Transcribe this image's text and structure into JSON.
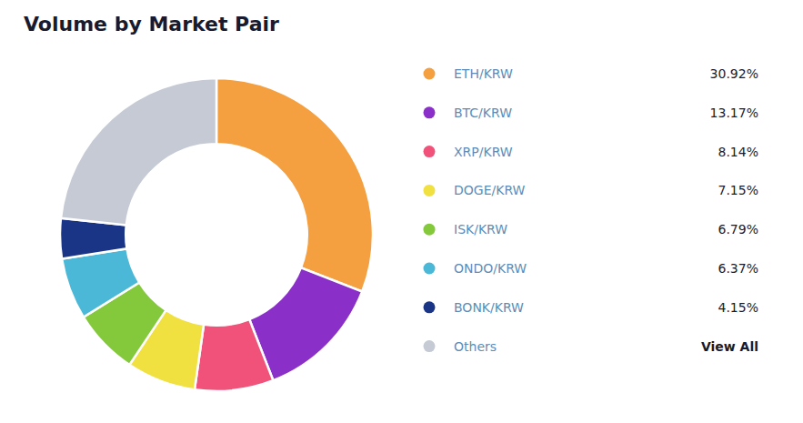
{
  "chart_data": {
    "type": "pie",
    "title": "Volume by Market Pair",
    "categories": [
      "ETH/KRW",
      "BTC/KRW",
      "XRP/KRW",
      "DOGE/KRW",
      "ISK/KRW",
      "ONDO/KRW",
      "BONK/KRW",
      "Others"
    ],
    "values": [
      30.92,
      13.17,
      8.14,
      7.15,
      6.79,
      6.37,
      4.15,
      23.31
    ],
    "value_labels": [
      "30.92%",
      "13.17%",
      "8.14%",
      "7.15%",
      "6.79%",
      "6.37%",
      "4.15%",
      "View All"
    ],
    "colors": [
      "#F5A040",
      "#8B2FC9",
      "#F0527A",
      "#F0E040",
      "#84C93C",
      "#4BB8D8",
      "#1A3585",
      "#C5CAD4"
    ],
    "legend": "right"
  }
}
